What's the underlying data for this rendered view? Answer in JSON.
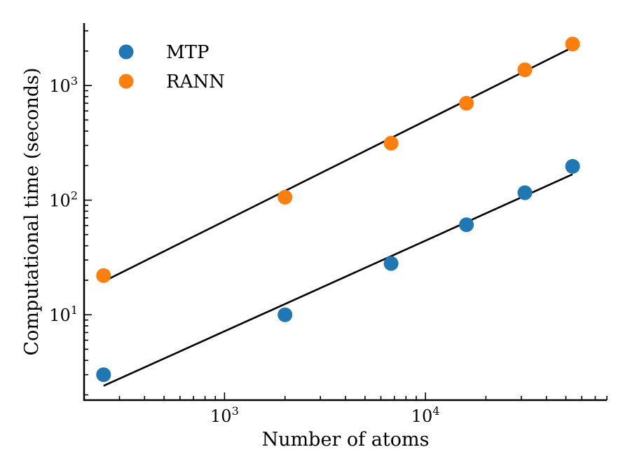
{
  "chart_data": {
    "type": "scatter",
    "title": "",
    "xlabel": "Number of atoms",
    "ylabel": "Computational time (seconds)",
    "xscale": "log",
    "yscale": "log",
    "xlim": [
      200,
      80000
    ],
    "ylim": [
      1.8,
      3500
    ],
    "xticks": [
      {
        "value": 1000,
        "base": "10",
        "exp": "3"
      },
      {
        "value": 10000,
        "base": "10",
        "exp": "4"
      }
    ],
    "yticks": [
      {
        "value": 10,
        "base": "10",
        "exp": "1"
      },
      {
        "value": 100,
        "base": "10",
        "exp": "2"
      },
      {
        "value": 1000,
        "base": "10",
        "exp": "3"
      }
    ],
    "legend_position": "top-left",
    "series": [
      {
        "name": "MTP",
        "color": "#1f77b4",
        "x": [
          250,
          2000,
          6750,
          16000,
          31250,
          54000
        ],
        "y": [
          3.0,
          10.0,
          28.0,
          61.0,
          116.0,
          197.0
        ],
        "fit": {
          "x": [
            250,
            54000
          ],
          "y": [
            2.4,
            168.0
          ]
        }
      },
      {
        "name": "RANN",
        "color": "#ff7f0e",
        "x": [
          250,
          2000,
          6750,
          16000,
          31250,
          54000
        ],
        "y": [
          22.0,
          106.0,
          314.0,
          700.0,
          1370.0,
          2300.0
        ],
        "fit": {
          "x": [
            250,
            54000
          ],
          "y": [
            19.5,
            2150.0
          ]
        }
      }
    ],
    "fit_color": "#000000"
  }
}
